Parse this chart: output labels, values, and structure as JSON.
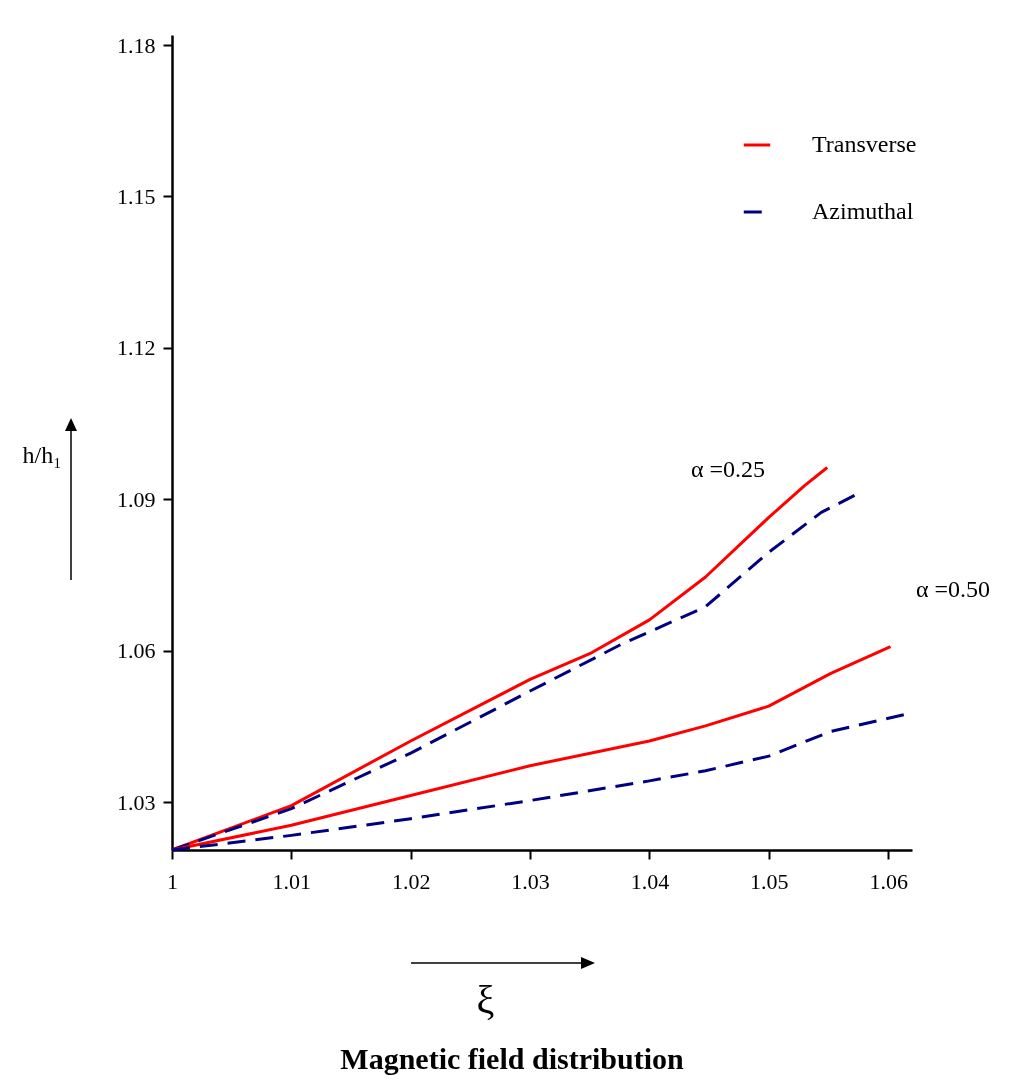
{
  "chart_data": {
    "type": "line",
    "title": "Magnetic field distribution",
    "xlabel": "ξ",
    "ylabel": "h/h₁",
    "xlim": [
      1,
      1.062
    ],
    "xticks": [
      {
        "value": 1,
        "label": "1"
      },
      1.01,
      1.02,
      1.03,
      1.04,
      1.05,
      1.06
    ],
    "ylim": [
      1.0205,
      1.182
    ],
    "yticks": [
      1.03,
      1.06,
      1.09,
      1.12,
      1.15,
      1.18
    ],
    "grid": false,
    "legend": "top right",
    "marker": "none",
    "series": [
      {
        "name": "Transverse",
        "color": "#ff0000",
        "line_style": "solid",
        "x": [
          1,
          1.01,
          1.02,
          1.03,
          1.035,
          1.04,
          1.0447,
          1.05,
          1.053,
          1.0549
        ],
        "values": [
          1.0205,
          1.0293,
          1.0421,
          1.0543,
          1.0594,
          1.0661,
          1.0746,
          1.0864,
          1.0927,
          1.0963
        ]
      },
      {
        "name": "Azimuthal",
        "color": "#000080",
        "line_style": "dashed",
        "x": [
          1,
          1.01,
          1.02,
          1.03,
          1.0376,
          1.0447,
          1.05,
          1.0544,
          1.0572
        ],
        "values": [
          1.0205,
          1.0287,
          1.0397,
          1.052,
          1.0612,
          1.0687,
          1.0795,
          1.0874,
          1.0908
        ]
      },
      {
        "color": "#ff0000",
        "line_style": "solid",
        "x": [
          1,
          1.01,
          1.02,
          1.03,
          1.04,
          1.0447,
          1.05,
          1.0552,
          1.0602
        ],
        "values": [
          1.0205,
          1.0254,
          1.0313,
          1.0372,
          1.0421,
          1.0451,
          1.049,
          1.0555,
          1.0608
        ]
      },
      {
        "color": "#000080",
        "line_style": "dashed",
        "x": [
          1,
          1.01,
          1.02,
          1.03,
          1.04,
          1.0447,
          1.05,
          1.0552,
          1.0615
        ],
        "values": [
          1.0205,
          1.0234,
          1.0267,
          1.0303,
          1.0342,
          1.0362,
          1.0391,
          1.044,
          1.0474
        ]
      }
    ],
    "annotations": [
      "α =0.25",
      "α =0.50"
    ]
  }
}
